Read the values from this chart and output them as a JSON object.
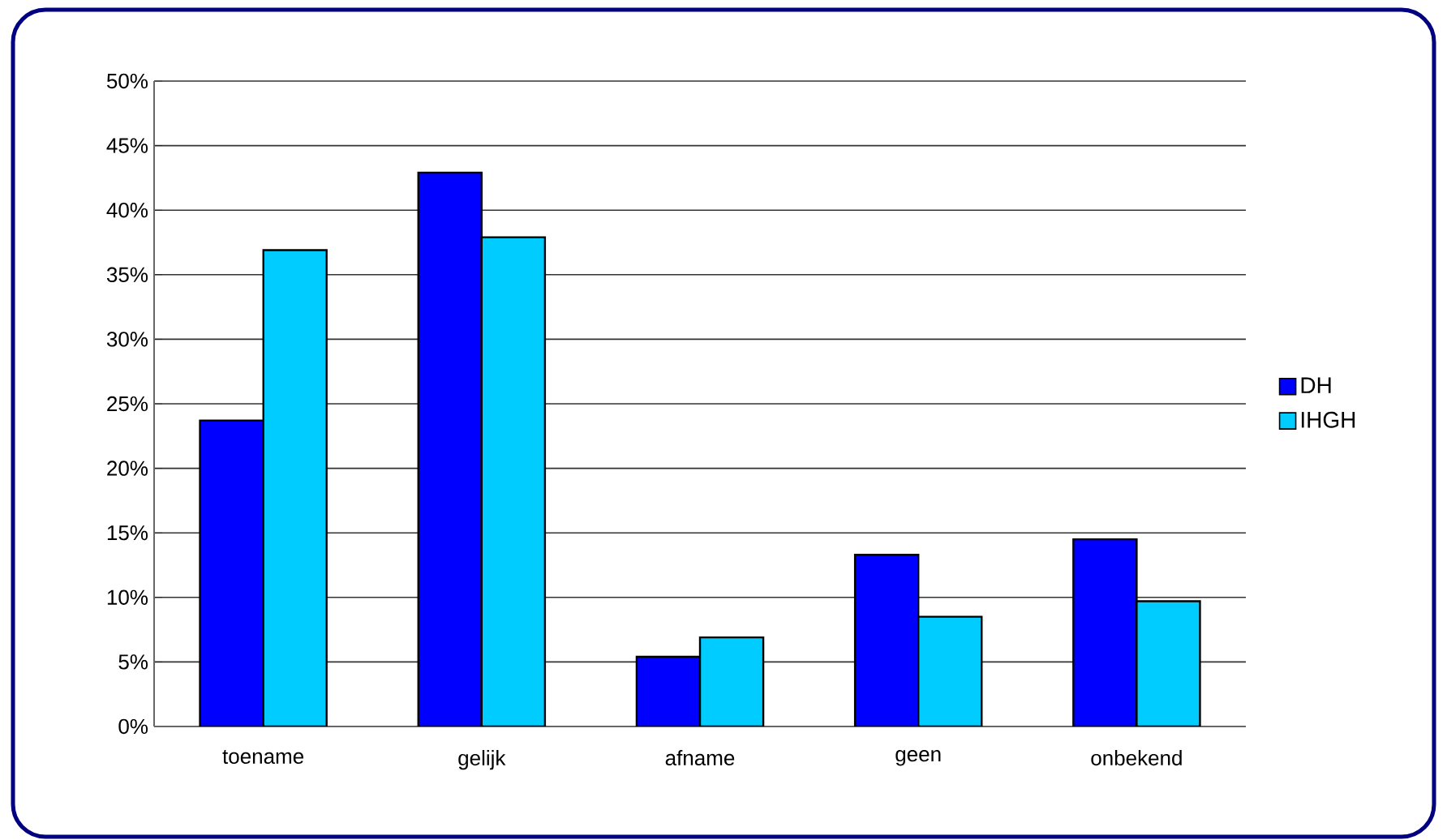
{
  "chart_data": {
    "type": "bar",
    "categories": [
      "toename",
      "gelijk",
      "afname",
      "geen",
      "onbekend"
    ],
    "series": [
      {
        "name": "DH",
        "color": "#0000ff",
        "values": [
          23.7,
          42.9,
          5.4,
          13.3,
          14.5
        ]
      },
      {
        "name": "IHGH",
        "color": "#00ccff",
        "values": [
          36.9,
          37.9,
          6.9,
          8.5,
          9.7
        ]
      }
    ],
    "ylim": [
      0,
      50
    ],
    "yticks": [
      {
        "value": 0,
        "label": "0%"
      },
      {
        "value": 5,
        "label": "5%"
      },
      {
        "value": 10,
        "label": "10%"
      },
      {
        "value": 15,
        "label": "15%"
      },
      {
        "value": 20,
        "label": "20%"
      },
      {
        "value": 25,
        "label": "25%"
      },
      {
        "value": 30,
        "label": "30%"
      },
      {
        "value": 35,
        "label": "35%"
      },
      {
        "value": 40,
        "label": "40%"
      },
      {
        "value": 45,
        "label": "45%"
      },
      {
        "value": 50,
        "label": "50%"
      }
    ],
    "grid": "y",
    "legend": "right"
  }
}
